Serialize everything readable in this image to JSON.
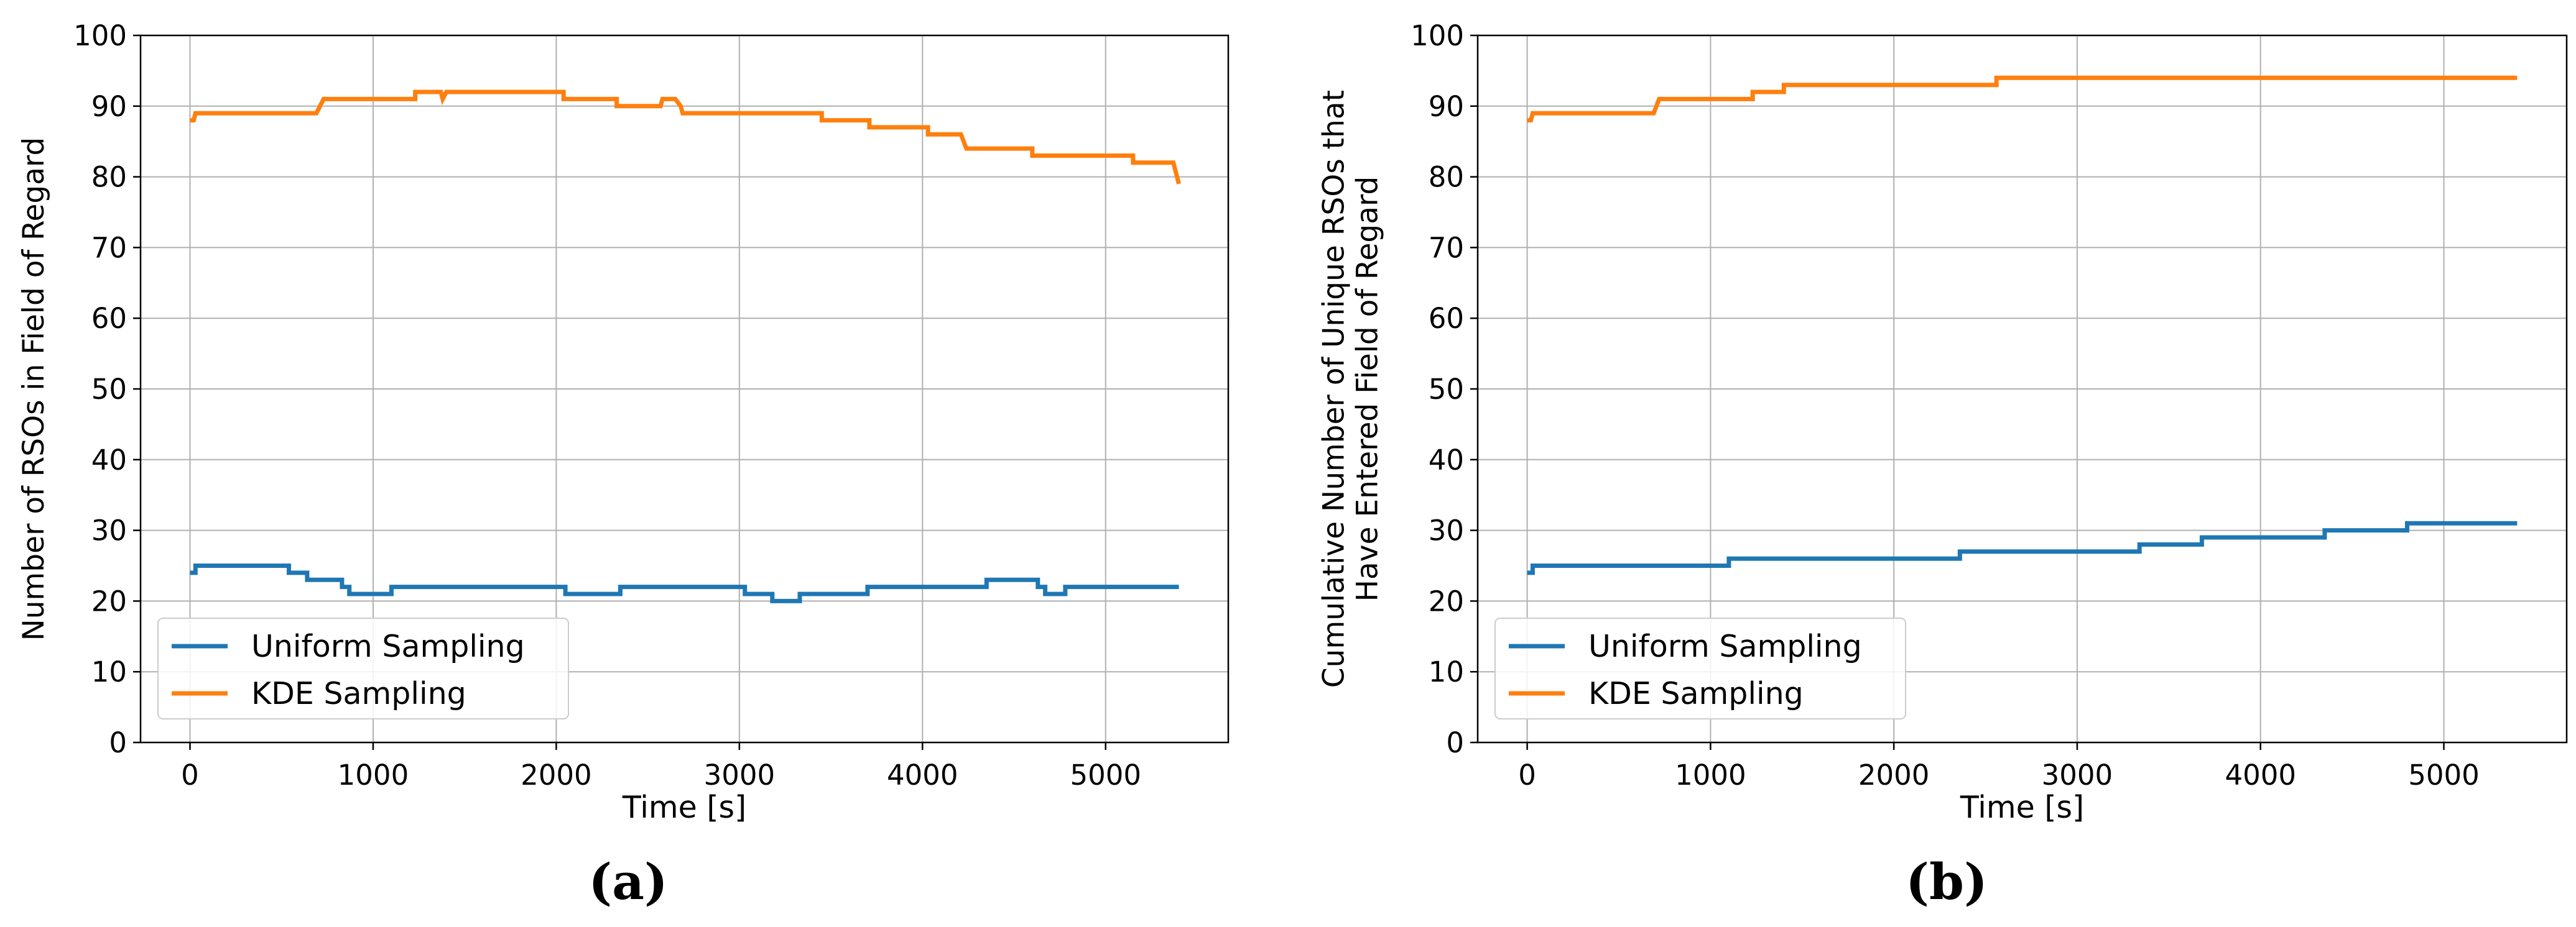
{
  "figure": {
    "captions": [
      "(a)",
      "(b)"
    ]
  },
  "chart_data": [
    {
      "type": "line",
      "panel": "a",
      "title": "",
      "xlabel": "Time [s]",
      "ylabel": "Number of RSOs in Field of Regard",
      "xlim": [
        -270,
        5670
      ],
      "ylim": [
        0,
        100
      ],
      "xticks": [
        0,
        1000,
        2000,
        3000,
        4000,
        5000
      ],
      "yticks": [
        0,
        10,
        20,
        30,
        40,
        50,
        60,
        70,
        80,
        90,
        100
      ],
      "grid": true,
      "legend": "lower-left",
      "series": [
        {
          "name": "Uniform Sampling",
          "color": "#1f77b4",
          "x": [
            0,
            30,
            30,
            540,
            540,
            640,
            640,
            830,
            830,
            870,
            870,
            1100,
            1100,
            2050,
            2050,
            2350,
            2350,
            3030,
            3030,
            3180,
            3180,
            3330,
            3330,
            3700,
            3700,
            4350,
            4350,
            4630,
            4630,
            4670,
            4670,
            4780,
            4780,
            5400
          ],
          "y": [
            24,
            24,
            25,
            25,
            24,
            24,
            23,
            23,
            22,
            22,
            21,
            21,
            22,
            22,
            21,
            21,
            22,
            22,
            21,
            21,
            20,
            20,
            21,
            21,
            22,
            22,
            23,
            23,
            22,
            22,
            21,
            21,
            22,
            22
          ]
        },
        {
          "name": "KDE Sampling",
          "color": "#ff7f0e",
          "x": [
            0,
            20,
            30,
            690,
            730,
            1230,
            1230,
            1370,
            1380,
            1400,
            2040,
            2040,
            2330,
            2330,
            2570,
            2580,
            2650,
            2680,
            2690,
            3450,
            3450,
            3710,
            3710,
            4030,
            4030,
            4210,
            4240,
            4600,
            4600,
            5150,
            5150,
            5370,
            5400
          ],
          "y": [
            88,
            88,
            89,
            89,
            91,
            91,
            92,
            92,
            91,
            92,
            92,
            91,
            91,
            90,
            90,
            91,
            91,
            90,
            89,
            89,
            88,
            88,
            87,
            87,
            86,
            86,
            84,
            84,
            83,
            83,
            82,
            82,
            79
          ]
        }
      ]
    },
    {
      "type": "line",
      "panel": "b",
      "title": "",
      "xlabel": "Time [s]",
      "ylabel": "Cumulative Number of Unique RSOs that Have Entered Field of Regard",
      "ylabel_lines": [
        "Cumulative Number of Unique RSOs that",
        "Have Entered Field of Regard"
      ],
      "xlim": [
        -270,
        5670
      ],
      "ylim": [
        0,
        100
      ],
      "xticks": [
        0,
        1000,
        2000,
        3000,
        4000,
        5000
      ],
      "yticks": [
        0,
        10,
        20,
        30,
        40,
        50,
        60,
        70,
        80,
        90,
        100
      ],
      "grid": true,
      "legend": "lower-left",
      "series": [
        {
          "name": "Uniform Sampling",
          "color": "#1f77b4",
          "x": [
            0,
            30,
            30,
            1100,
            1100,
            2360,
            2360,
            3340,
            3340,
            3680,
            3680,
            4350,
            4350,
            4800,
            4800,
            5400
          ],
          "y": [
            24,
            24,
            25,
            25,
            26,
            26,
            27,
            27,
            28,
            28,
            29,
            29,
            30,
            30,
            31,
            31
          ]
        },
        {
          "name": "KDE Sampling",
          "color": "#ff7f0e",
          "x": [
            0,
            20,
            30,
            690,
            720,
            1230,
            1230,
            1400,
            1400,
            2560,
            2560,
            5400
          ],
          "y": [
            88,
            88,
            89,
            89,
            91,
            91,
            92,
            92,
            93,
            93,
            94,
            94
          ]
        }
      ]
    }
  ]
}
